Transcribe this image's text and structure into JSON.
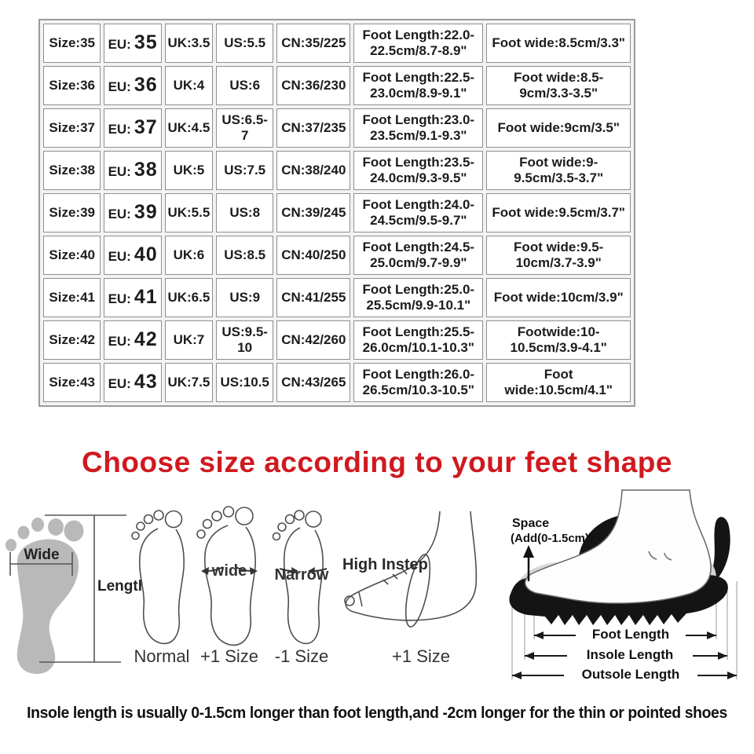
{
  "size_table": {
    "columns": [
      "size",
      "eu",
      "uk",
      "us",
      "cn",
      "foot_length",
      "foot_wide"
    ],
    "rows": [
      {
        "size": "Size:35",
        "eu_label": "EU:",
        "eu_value": "35",
        "uk": "UK:3.5",
        "us": "US:5.5",
        "cn": "CN:35/225",
        "foot_length": "Foot Length:22.0-22.5cm/8.7-8.9\"",
        "foot_wide": "Foot wide:8.5cm/3.3\""
      },
      {
        "size": "Size:36",
        "eu_label": "EU:",
        "eu_value": "36",
        "uk": "UK:4",
        "us": "US:6",
        "cn": "CN:36/230",
        "foot_length": "Foot Length:22.5-23.0cm/8.9-9.1\"",
        "foot_wide": "Foot wide:8.5-9cm/3.3-3.5\""
      },
      {
        "size": "Size:37",
        "eu_label": "EU:",
        "eu_value": "37",
        "uk": "UK:4.5",
        "us": "US:6.5-7",
        "cn": "CN:37/235",
        "foot_length": "Foot Length:23.0-23.5cm/9.1-9.3\"",
        "foot_wide": "Foot wide:9cm/3.5\""
      },
      {
        "size": "Size:38",
        "eu_label": "EU:",
        "eu_value": "38",
        "uk": "UK:5",
        "us": "US:7.5",
        "cn": "CN:38/240",
        "foot_length": "Foot Length:23.5-24.0cm/9.3-9.5\"",
        "foot_wide": "Foot wide:9-9.5cm/3.5-3.7\""
      },
      {
        "size": "Size:39",
        "eu_label": "EU:",
        "eu_value": "39",
        "uk": "UK:5.5",
        "us": "US:8",
        "cn": "CN:39/245",
        "foot_length": "Foot Length:24.0-24.5cm/9.5-9.7\"",
        "foot_wide": "Foot wide:9.5cm/3.7\""
      },
      {
        "size": "Size:40",
        "eu_label": "EU:",
        "eu_value": "40",
        "uk": "UK:6",
        "us": "US:8.5",
        "cn": "CN:40/250",
        "foot_length": "Foot Length:24.5-25.0cm/9.7-9.9\"",
        "foot_wide": "Foot wide:9.5-10cm/3.7-3.9\""
      },
      {
        "size": "Size:41",
        "eu_label": "EU:",
        "eu_value": "41",
        "uk": "UK:6.5",
        "us": "US:9",
        "cn": "CN:41/255",
        "foot_length": "Foot Length:25.0-25.5cm/9.9-10.1\"",
        "foot_wide": "Foot wide:10cm/3.9\""
      },
      {
        "size": "Size:42",
        "eu_label": "EU:",
        "eu_value": "42",
        "uk": "UK:7",
        "us": "US:9.5-10",
        "cn": "CN:42/260",
        "foot_length": "Foot Length:25.5-26.0cm/10.1-10.3\"",
        "foot_wide": "Footwide:10-10.5cm/3.9-4.1\""
      },
      {
        "size": "Size:43",
        "eu_label": "EU:",
        "eu_value": "43",
        "uk": "UK:7.5",
        "us": "US:10.5",
        "cn": "CN:43/265",
        "foot_length": "Foot Length:26.0-26.5cm/10.3-10.5\"",
        "foot_wide": "Foot wide:10.5cm/4.1\""
      }
    ]
  },
  "heading": {
    "text": "Choose size according to your feet shape",
    "color": "#d0191f"
  },
  "diagrams": {
    "footprint": {
      "wide_label": "Wide",
      "length_label": "Length"
    },
    "normal_foot": {
      "caption": "Normal"
    },
    "wide_foot": {
      "inner_label": "wide",
      "caption": "+1 Size"
    },
    "narrow_foot": {
      "inner_label": "Narrow",
      "caption": "-1 Size"
    },
    "high_instep": {
      "label": "High Instep",
      "caption": "+1 Size"
    },
    "shoe": {
      "space_label": "Space",
      "space_note": "(Add(0-1.5cm))",
      "foot_length_label": "Foot Length",
      "insole_length_label": "Insole Length",
      "outsole_length_label": "Outsole Length"
    }
  },
  "footnote": "Insole length is usually 0-1.5cm longer than foot length,and -2cm longer for the thin or pointed shoes"
}
